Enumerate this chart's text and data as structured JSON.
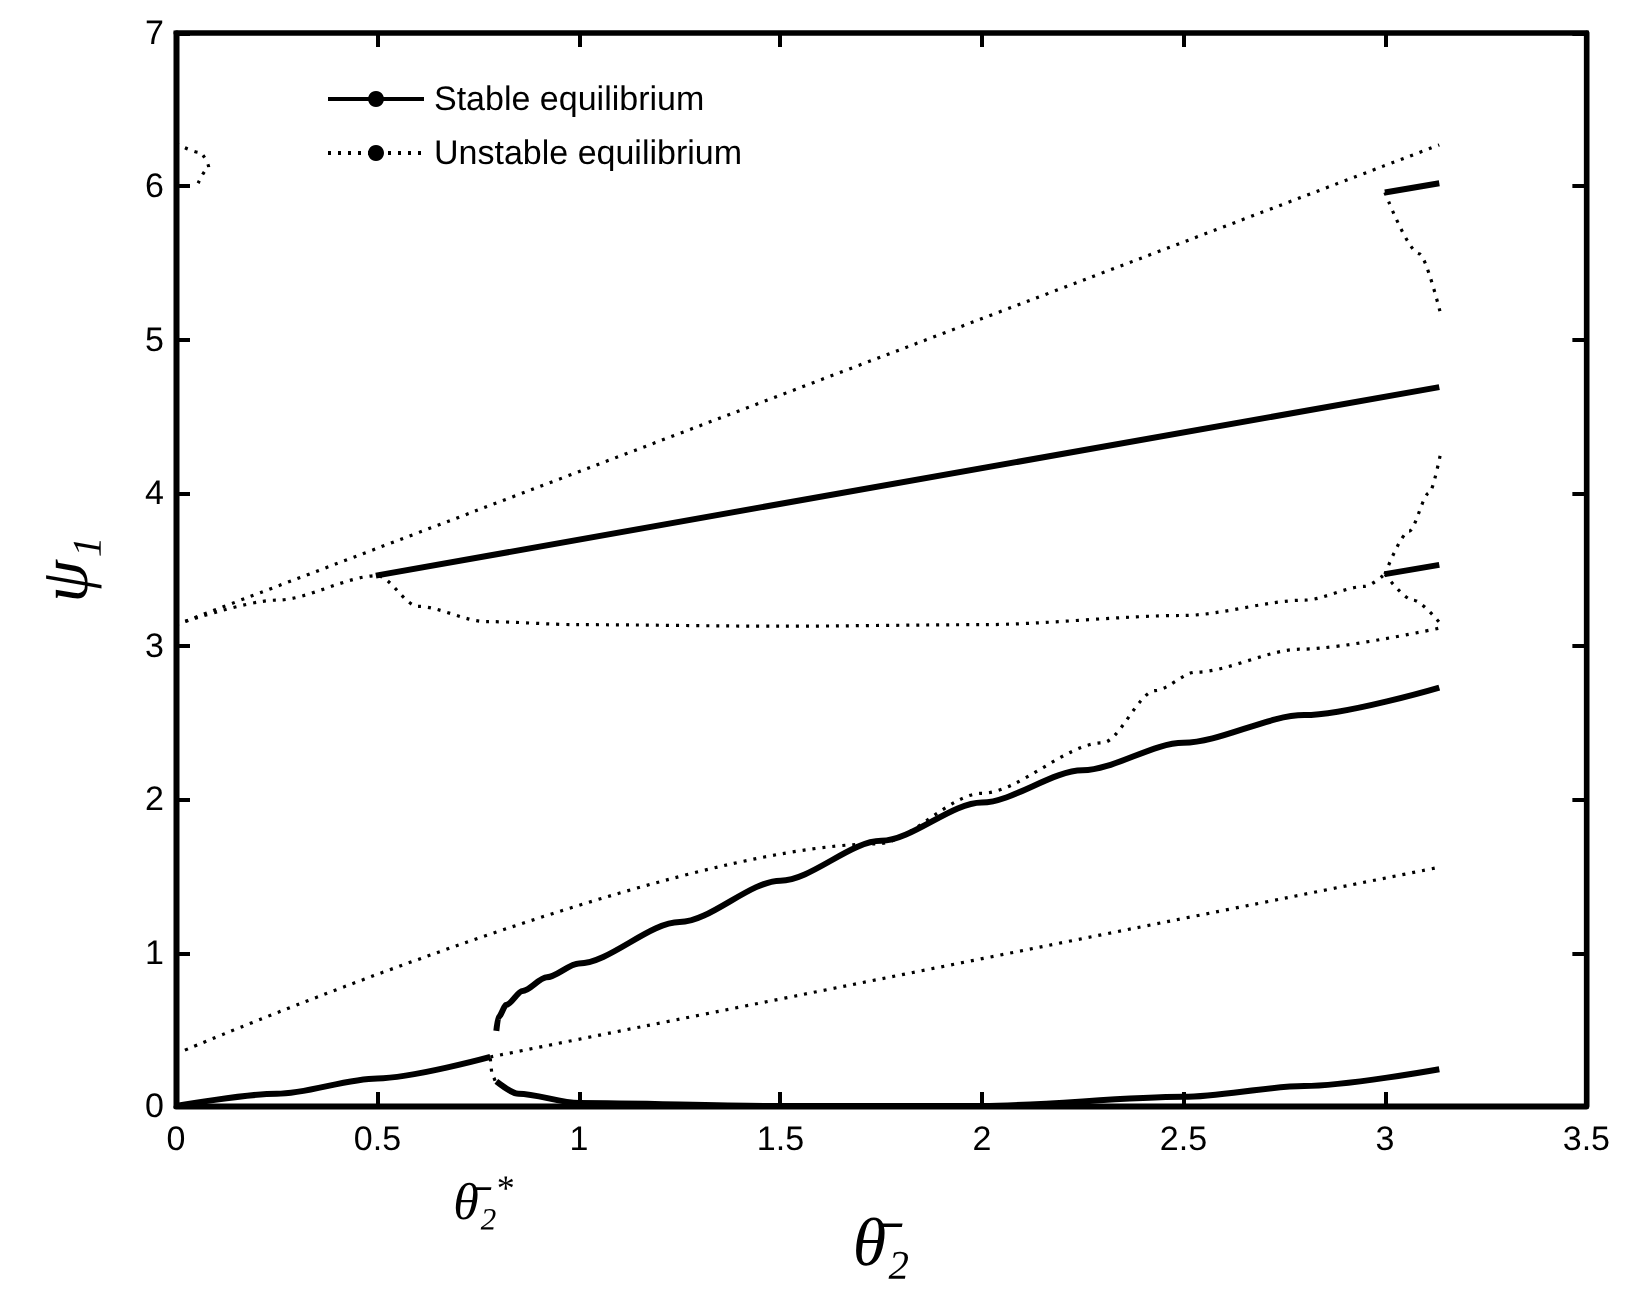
{
  "chart_data": {
    "type": "line",
    "xlabel": "θ̄₂",
    "ylabel": "ψ₁",
    "xlim": [
      0,
      3.5
    ],
    "xticks": [
      0,
      0.5,
      1,
      1.5,
      2,
      2.5,
      3,
      3.5
    ],
    "ylim": [
      0,
      7
    ],
    "yticks": [
      0,
      1,
      2,
      3,
      4,
      5,
      6,
      7
    ],
    "grid": false,
    "legend": "top left",
    "marker": "none",
    "annotations": [
      "θ̄₂$^{*}$"
    ],
    "series": [
      {
        "name": "Stable equilibrium",
        "color": "#000000",
        "line_style": "solid",
        "x": [
          0,
          0.25,
          0.5,
          0.78
        ],
        "values": [
          0,
          0.08,
          0.18,
          0.32
        ]
      },
      {
        "color": "#000000",
        "line_style": "solid",
        "x": [
          0.795,
          0.8,
          0.82,
          0.86,
          0.92,
          1.0,
          1.25,
          1.5,
          1.75,
          2.0,
          2.25,
          2.5,
          2.8,
          3.135
        ],
        "values": [
          0.49,
          0.58,
          0.66,
          0.75,
          0.84,
          0.93,
          1.2,
          1.47,
          1.73,
          1.98,
          2.19,
          2.37,
          2.55,
          2.73
        ]
      },
      {
        "color": "#000000",
        "line_style": "solid",
        "x": [
          0.795,
          0.85,
          1.0,
          1.5,
          2.0,
          2.5,
          2.8,
          3.135
        ],
        "values": [
          0.16,
          0.08,
          0.02,
          0.0,
          0.0,
          0.06,
          0.13,
          0.24
        ]
      },
      {
        "color": "#000000",
        "line_style": "solid",
        "x": [
          0.496,
          3.135
        ],
        "values": [
          3.46,
          4.69
        ]
      },
      {
        "color": "#000000",
        "line_style": "solid",
        "x": [
          3.0,
          3.135
        ],
        "values": [
          3.47,
          3.53
        ]
      },
      {
        "color": "#000000",
        "line_style": "solid",
        "x": [
          3.0,
          3.135
        ],
        "values": [
          5.96,
          6.02
        ]
      },
      {
        "name": "Unstable equilibrium",
        "color": "#000000",
        "line_style": "dotted",
        "x": [
          0,
          1.74,
          2.0,
          2.3,
          2.43,
          2.53,
          2.79,
          3.14
        ],
        "values": [
          0.34,
          1.71,
          2.04,
          2.37,
          2.71,
          2.83,
          2.98,
          3.12
        ]
      },
      {
        "color": "#000000",
        "line_style": "dotted",
        "x": [
          0.78,
          3.14
        ],
        "values": [
          0.32,
          1.56
        ]
      },
      {
        "color": "#000000",
        "line_style": "dotted",
        "x": [
          0.78,
          0.785,
          0.795
        ],
        "values": [
          0.31,
          0.2,
          0.14
        ]
      },
      {
        "color": "#000000",
        "line_style": "dotted",
        "x": [
          0,
          3.135
        ],
        "values": [
          3.14,
          6.27
        ]
      },
      {
        "color": "#000000",
        "line_style": "dotted",
        "x": [
          0,
          0.25,
          0.5,
          0.6,
          0.77,
          1.0,
          1.5,
          2.0,
          2.5,
          2.8,
          2.95,
          3.0
        ],
        "values": [
          3.14,
          3.3,
          3.46,
          3.26,
          3.16,
          3.14,
          3.13,
          3.14,
          3.2,
          3.3,
          3.39,
          3.47
        ]
      },
      {
        "color": "#000000",
        "line_style": "dotted",
        "x": [
          3.0,
          3.07,
          3.14
        ],
        "values": [
          3.47,
          3.3,
          3.14
        ]
      },
      {
        "color": "#000000",
        "line_style": "dotted",
        "x": [
          3.0,
          3.06,
          3.11,
          3.14
        ],
        "values": [
          3.47,
          3.75,
          4.0,
          4.28
        ]
      },
      {
        "color": "#000000",
        "line_style": "dotted",
        "x": [
          3.0,
          3.085,
          3.14
        ],
        "values": [
          5.96,
          5.56,
          5.15
        ]
      },
      {
        "color": "#000000",
        "line_style": "dotted",
        "x": [
          0,
          0.06,
          0.08,
          0.055
        ],
        "values": [
          6.28,
          6.22,
          6.12,
          6.02
        ]
      }
    ]
  }
}
